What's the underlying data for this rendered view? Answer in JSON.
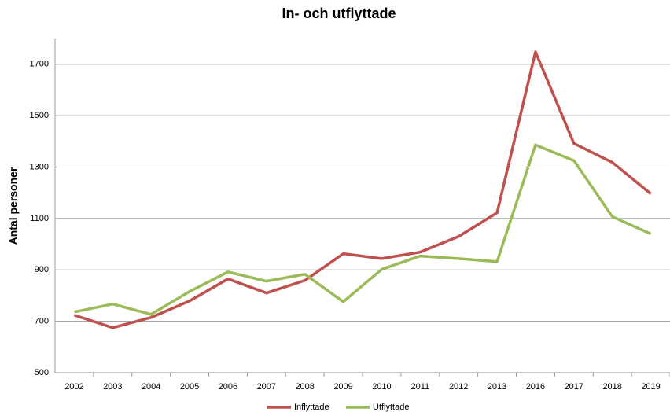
{
  "chart_data": {
    "type": "line",
    "title": "In- och utflyttade",
    "y_label": "Antal personer",
    "categories": [
      "2002",
      "2003",
      "2004",
      "2005",
      "2006",
      "2007",
      "2008",
      "2009",
      "2010",
      "2011",
      "2012",
      "2013",
      "2016",
      "2017",
      "2018",
      "2019"
    ],
    "series": [
      {
        "name": "Inflyttade",
        "color": "#c0504d",
        "values": [
          724,
          675,
          715,
          779,
          865,
          810,
          859,
          963,
          944,
          969,
          1030,
          1122,
          1748,
          1392,
          1318,
          1196
        ]
      },
      {
        "name": "Utflyttade",
        "color": "#9bbb59",
        "values": [
          736,
          767,
          727,
          816,
          892,
          856,
          883,
          776,
          902,
          954,
          944,
          932,
          1386,
          1325,
          1107,
          1040
        ]
      }
    ],
    "ylim": [
      500,
      1800
    ],
    "yticks": [
      500,
      700,
      900,
      1100,
      1300,
      1500,
      1700
    ],
    "grid": true,
    "legend": "bottom"
  }
}
